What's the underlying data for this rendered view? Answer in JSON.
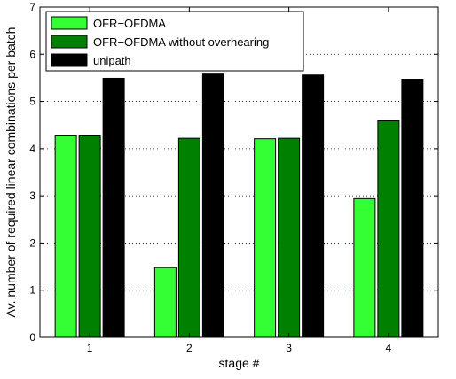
{
  "chart_data": {
    "type": "bar",
    "categories": [
      "1",
      "2",
      "3",
      "4"
    ],
    "series": [
      {
        "name": "OFR−OFDMA",
        "values": [
          4.27,
          1.48,
          4.21,
          2.94
        ],
        "color": "#33ff33"
      },
      {
        "name": "OFR−OFDMA without overhearing",
        "values": [
          4.27,
          4.22,
          4.22,
          4.59
        ],
        "color": "#008000"
      },
      {
        "name": "unipath",
        "values": [
          5.49,
          5.58,
          5.56,
          5.47
        ],
        "color": "#000000"
      }
    ],
    "title": "",
    "xlabel": "stage #",
    "ylabel": "Av. number of required linear combinations per batch",
    "ylim": [
      0,
      7
    ],
    "yticks": [
      "0",
      "1",
      "2",
      "3",
      "4",
      "5",
      "6",
      "7"
    ],
    "grid": "horizontal dotted",
    "legend_position": "top-left"
  }
}
